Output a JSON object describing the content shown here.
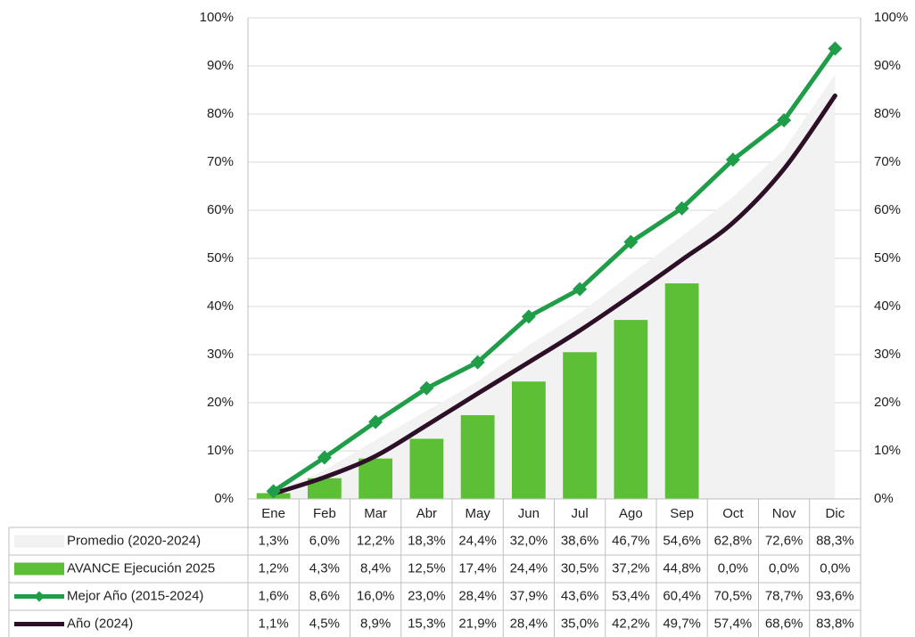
{
  "chart_data": {
    "type": "combo",
    "categories": [
      "Ene",
      "Feb",
      "Mar",
      "Abr",
      "May",
      "Jun",
      "Jul",
      "Ago",
      "Sep",
      "Oct",
      "Nov",
      "Dic"
    ],
    "ylim": [
      0,
      100
    ],
    "yticks": [
      {
        "value": 0,
        "label": "0%"
      },
      {
        "value": 10,
        "label": "10%"
      },
      {
        "value": 20,
        "label": "20%"
      },
      {
        "value": 30,
        "label": "30%"
      },
      {
        "value": 40,
        "label": "40%"
      },
      {
        "value": 50,
        "label": "50%"
      },
      {
        "value": 60,
        "label": "60%"
      },
      {
        "value": 70,
        "label": "70%"
      },
      {
        "value": 80,
        "label": "80%"
      },
      {
        "value": 90,
        "label": "90%"
      },
      {
        "value": 100,
        "label": "100%"
      }
    ],
    "y2lim": [
      0,
      100
    ],
    "y2ticks": [
      {
        "value": 0,
        "label": "0%"
      },
      {
        "value": 10,
        "label": "10%"
      },
      {
        "value": 20,
        "label": "20%"
      },
      {
        "value": 30,
        "label": "30%"
      },
      {
        "value": 40,
        "label": "40%"
      },
      {
        "value": 50,
        "label": "50%"
      },
      {
        "value": 60,
        "label": "60%"
      },
      {
        "value": 70,
        "label": "70%"
      },
      {
        "value": 80,
        "label": "80%"
      },
      {
        "value": 90,
        "label": "90%"
      },
      {
        "value": 100,
        "label": "100%"
      }
    ],
    "grid": true,
    "series": [
      {
        "name": "Promedio (2020-2024)",
        "kind": "area",
        "color": "#f2f2f2",
        "values": [
          1.3,
          6.0,
          12.2,
          18.3,
          24.4,
          32.0,
          38.6,
          46.7,
          54.6,
          62.8,
          72.6,
          88.3
        ],
        "value_labels": [
          "1,3%",
          "6,0%",
          "12,2%",
          "18,3%",
          "24,4%",
          "32,0%",
          "38,6%",
          "46,7%",
          "54,6%",
          "62,8%",
          "72,6%",
          "88,3%"
        ]
      },
      {
        "name": "AVANCE Ejecución 2025",
        "kind": "bar",
        "color": "#5cbf35",
        "values": [
          1.2,
          4.3,
          8.4,
          12.5,
          17.4,
          24.4,
          30.5,
          37.2,
          44.8,
          0.0,
          0.0,
          0.0
        ],
        "value_labels": [
          "1,2%",
          "4,3%",
          "8,4%",
          "12,5%",
          "17,4%",
          "24,4%",
          "30,5%",
          "37,2%",
          "44,8%",
          "0,0%",
          "0,0%",
          "0,0%"
        ]
      },
      {
        "name": "Mejor Año (2015-2024)",
        "kind": "line-marker",
        "color": "#1f9d49",
        "values": [
          1.6,
          8.6,
          16.0,
          23.0,
          28.4,
          37.9,
          43.6,
          53.4,
          60.4,
          70.5,
          78.7,
          93.6
        ],
        "value_labels": [
          "1,6%",
          "8,6%",
          "16,0%",
          "23,0%",
          "28,4%",
          "37,9%",
          "43,6%",
          "53,4%",
          "60,4%",
          "70,5%",
          "78,7%",
          "93,6%"
        ]
      },
      {
        "name": "Año (2024)",
        "kind": "line",
        "color": "#2d1027",
        "values": [
          1.1,
          4.5,
          8.9,
          15.3,
          21.9,
          28.4,
          35.0,
          42.2,
          49.7,
          57.4,
          68.6,
          83.8
        ],
        "value_labels": [
          "1,1%",
          "4,5%",
          "8,9%",
          "15,3%",
          "21,9%",
          "28,4%",
          "35,0%",
          "42,2%",
          "49,7%",
          "57,4%",
          "68,6%",
          "83,8%"
        ]
      }
    ]
  }
}
